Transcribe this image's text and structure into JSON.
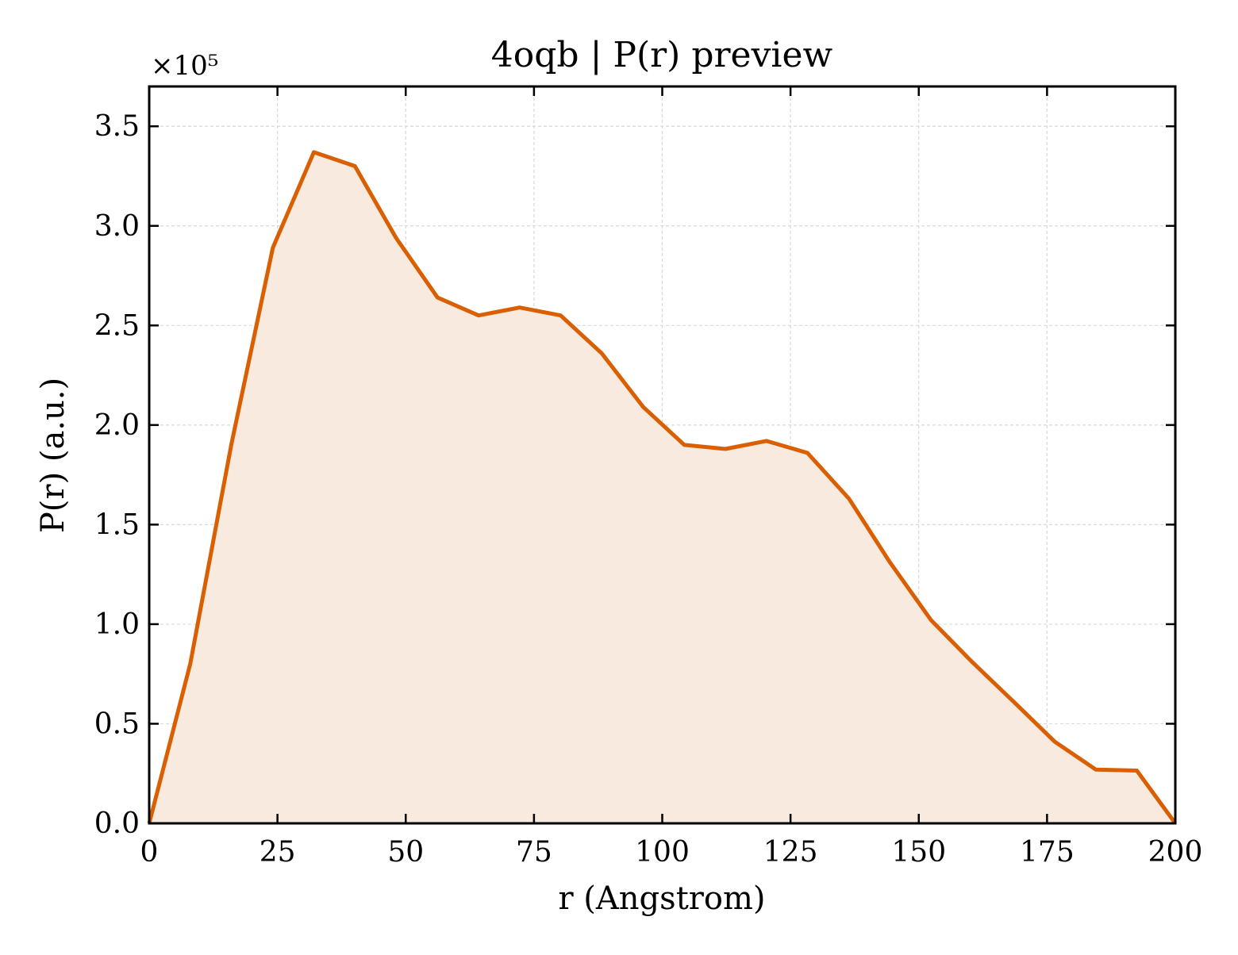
{
  "colors": {
    "line": "#d95f02",
    "fill": "#f9eadf",
    "grid": "#d9d9d9",
    "axis": "#000000",
    "background": "#ffffff"
  },
  "chart_data": {
    "type": "area",
    "title": "4oqb | P(r) preview",
    "xlabel": "r (Angstrom)",
    "ylabel": "P(r) (a.u.)",
    "y_offset_label": "×10⁵",
    "y_multiplier": 100000,
    "xlim": [
      0,
      200
    ],
    "ylim": [
      0,
      3.7
    ],
    "x_ticks": [
      0,
      25,
      50,
      75,
      100,
      125,
      150,
      175,
      200
    ],
    "x_tick_labels": [
      "0",
      "25",
      "50",
      "75",
      "100",
      "125",
      "150",
      "175",
      "200"
    ],
    "y_ticks": [
      0.0,
      0.5,
      1.0,
      1.5,
      2.0,
      2.5,
      3.0,
      3.5
    ],
    "y_tick_labels": [
      "0.0",
      "0.5",
      "1.0",
      "1.5",
      "2.0",
      "2.5",
      "3.0",
      "3.5"
    ],
    "grid": true,
    "legend": false,
    "series": [
      {
        "x": [
          0,
          8.0,
          16.0,
          24.1,
          32.1,
          40.1,
          48.1,
          56.2,
          64.2,
          72.2,
          80.2,
          88.2,
          96.3,
          104.3,
          112.3,
          120.3,
          128.3,
          136.4,
          144.4,
          152.4,
          160.4,
          168.5,
          176.5,
          184.5,
          192.5,
          200.0
        ],
        "y": [
          0.0,
          0.8,
          1.9,
          2.89,
          3.37,
          3.3,
          2.94,
          2.64,
          2.55,
          2.59,
          2.55,
          2.36,
          2.09,
          1.9,
          1.88,
          1.92,
          1.86,
          1.63,
          1.31,
          1.02,
          0.81,
          0.61,
          0.41,
          0.27,
          0.265,
          0.0
        ]
      }
    ]
  }
}
